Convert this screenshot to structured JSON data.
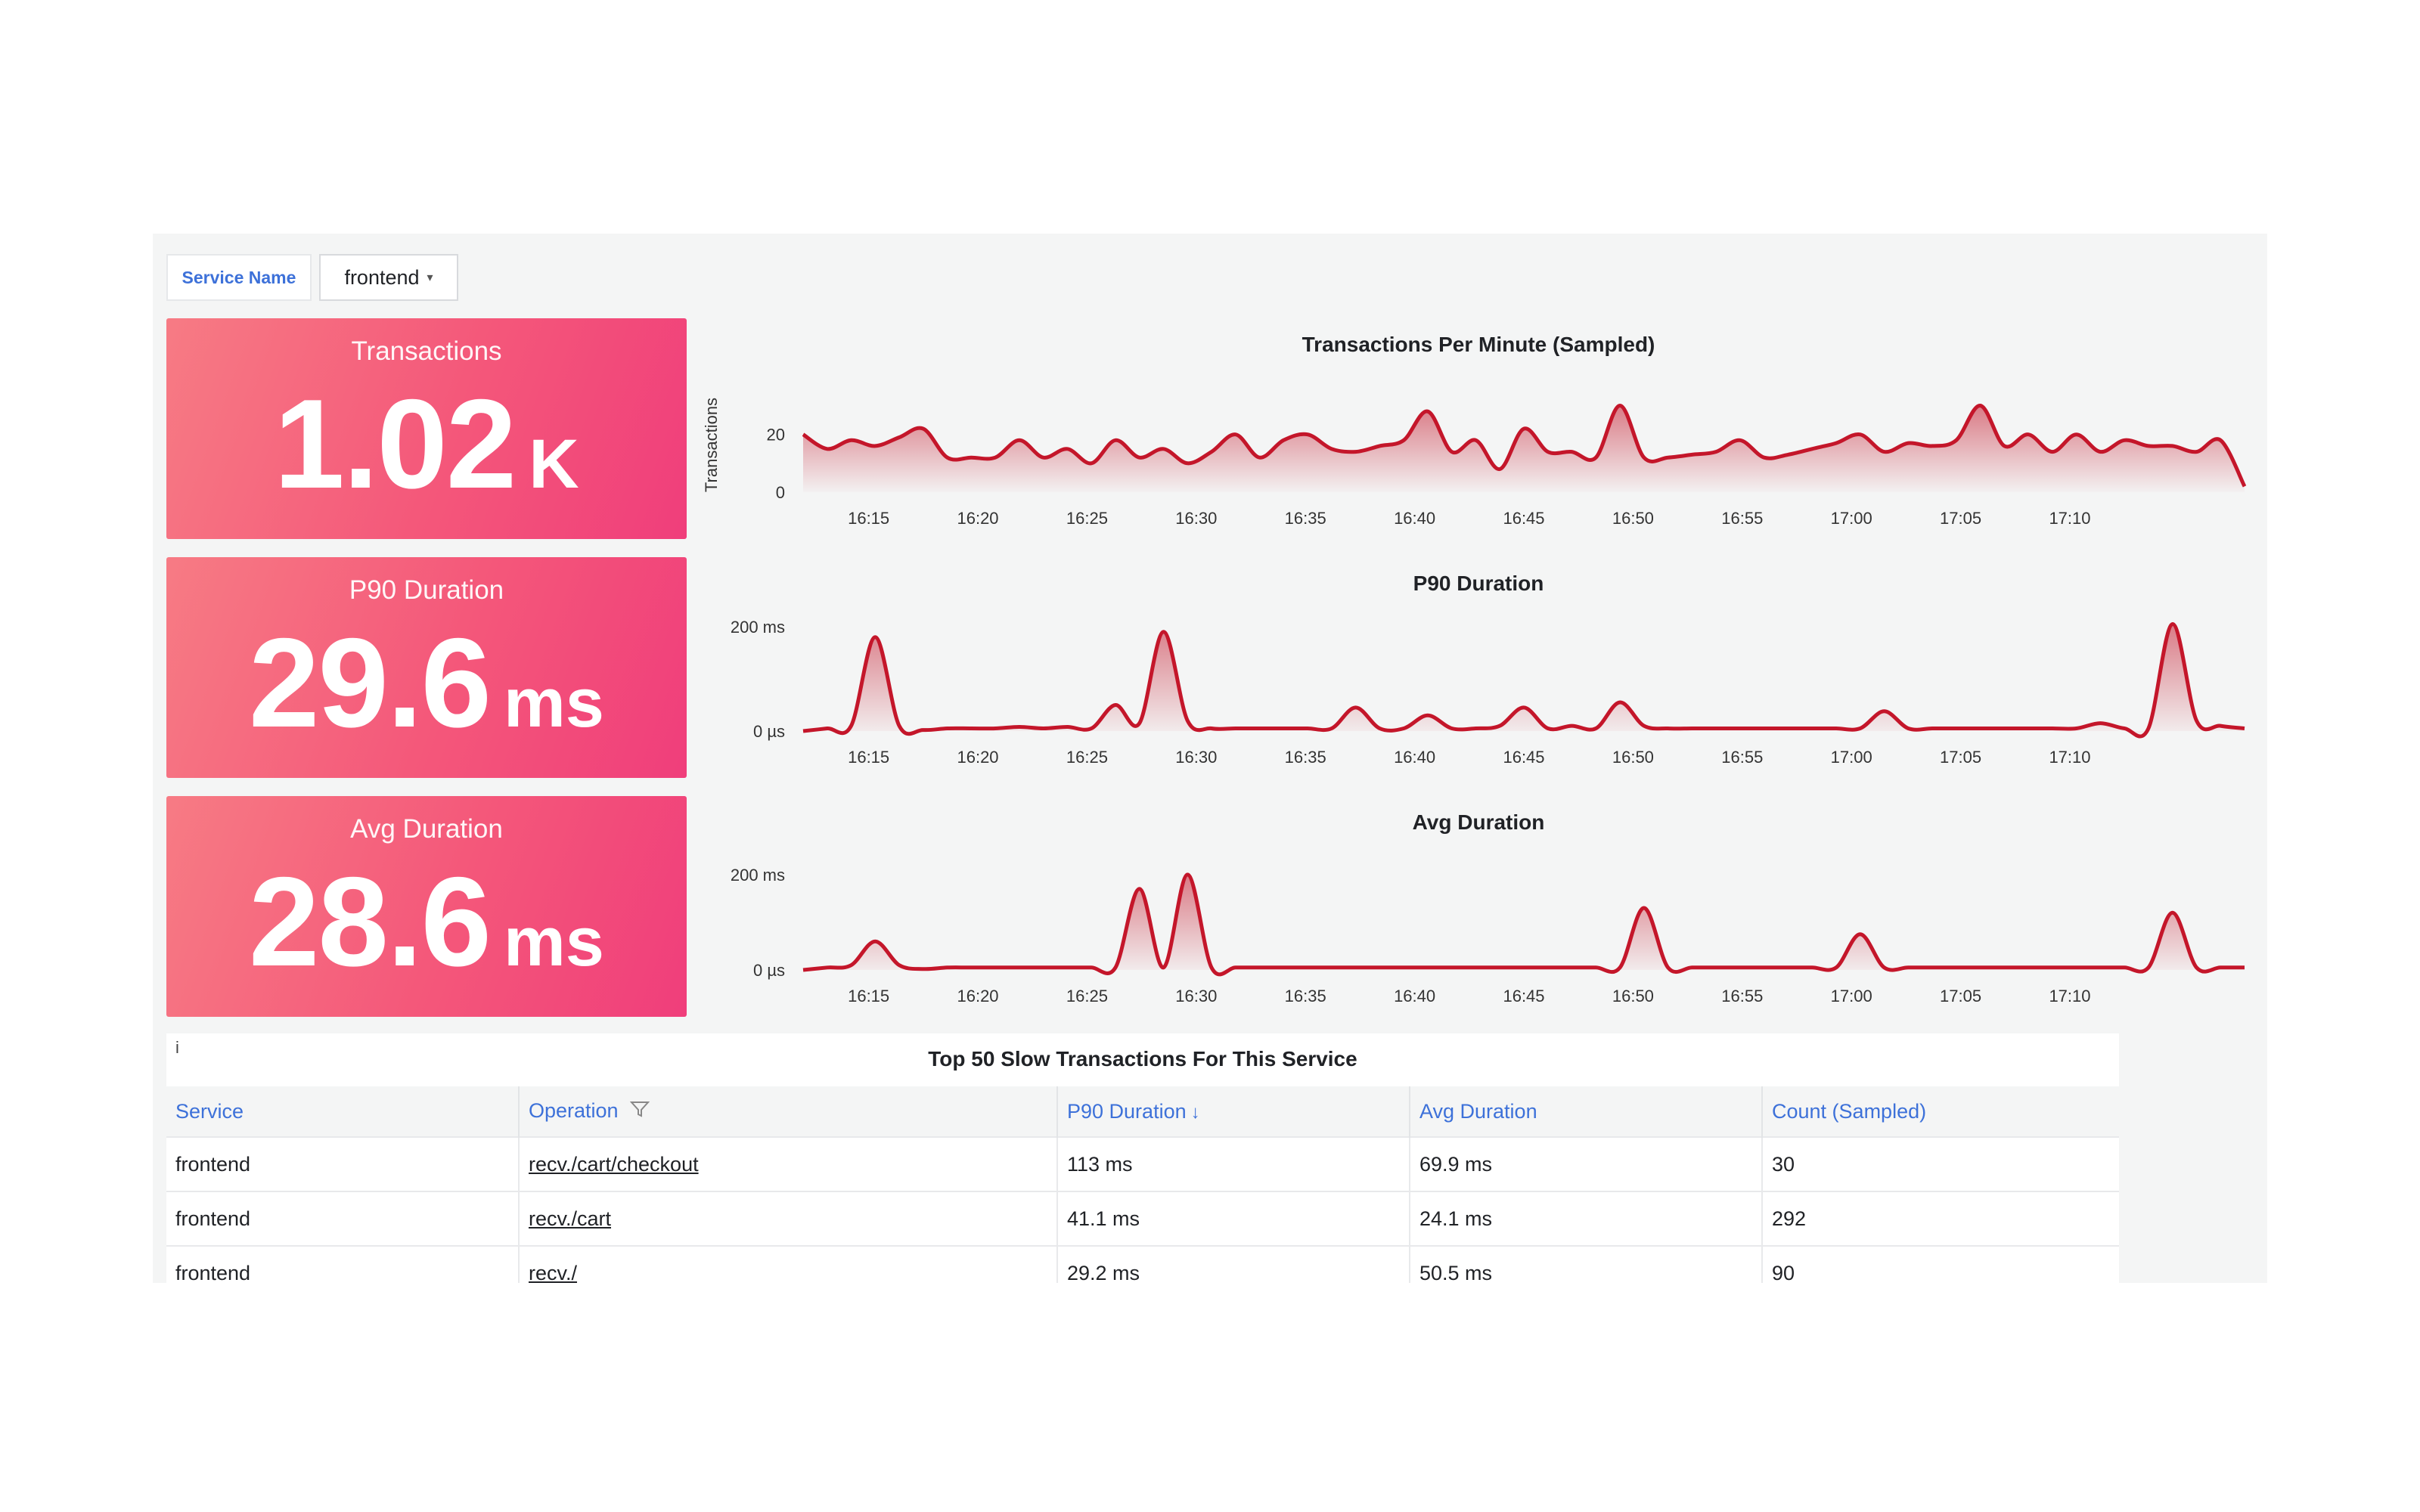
{
  "variable": {
    "label": "Service Name",
    "value": "frontend"
  },
  "stats": [
    {
      "title": "Transactions",
      "value": "1.02",
      "unit": "K"
    },
    {
      "title": "P90 Duration",
      "value": "29.6",
      "unit": "ms"
    },
    {
      "title": "Avg Duration",
      "value": "28.6",
      "unit": "ms"
    }
  ],
  "colors": {
    "accent": "#c4162a",
    "stat_bg": "#f4577a",
    "header_link": "#3d71d9"
  },
  "chart_data": [
    {
      "type": "area",
      "title": "Transactions Per Minute (Sampled)",
      "ylabel": "Transactions",
      "yticks": [
        "20",
        "0"
      ],
      "ylim": [
        0,
        38
      ],
      "x_ticks": [
        "16:15",
        "16:20",
        "16:25",
        "16:30",
        "16:35",
        "16:40",
        "16:45",
        "16:50",
        "16:55",
        "17:00",
        "17:05",
        "17:10"
      ],
      "x_range": [
        16.2,
        17.3
      ],
      "series": [
        {
          "values": [
            20,
            15,
            18,
            16,
            19,
            22,
            12,
            12,
            12,
            18,
            12,
            15,
            10,
            18,
            12,
            15,
            10,
            14,
            20,
            12,
            18,
            20,
            15,
            14,
            16,
            18,
            28,
            14,
            18,
            8,
            22,
            14,
            14,
            12,
            30,
            12,
            12,
            13,
            14,
            18,
            12,
            13,
            15,
            17,
            20,
            14,
            17,
            16,
            18,
            30,
            16,
            20,
            14,
            20,
            14,
            18,
            16,
            16,
            14,
            18,
            2
          ]
        }
      ]
    },
    {
      "type": "area",
      "title": "P90 Duration",
      "yticks": [
        "200 ms",
        "0 µs"
      ],
      "ylim": [
        0,
        210
      ],
      "x_ticks": [
        "16:15",
        "16:20",
        "16:25",
        "16:30",
        "16:35",
        "16:40",
        "16:45",
        "16:50",
        "16:55",
        "17:00",
        "17:05",
        "17:10"
      ],
      "x_range": [
        16.2,
        17.3
      ],
      "series": [
        {
          "values": [
            0,
            5,
            10,
            180,
            10,
            2,
            5,
            5,
            5,
            8,
            5,
            8,
            5,
            50,
            15,
            190,
            20,
            5,
            5,
            5,
            5,
            5,
            5,
            45,
            5,
            5,
            30,
            5,
            5,
            10,
            45,
            5,
            10,
            5,
            55,
            10,
            5,
            5,
            5,
            5,
            5,
            5,
            5,
            5,
            5,
            38,
            5,
            5,
            5,
            5,
            5,
            5,
            5,
            5,
            15,
            5,
            5,
            205,
            20,
            10,
            5
          ]
        }
      ]
    },
    {
      "type": "area",
      "title": "Avg Duration",
      "yticks": [
        "200 ms",
        "0 µs"
      ],
      "ylim": [
        0,
        230
      ],
      "x_ticks": [
        "16:15",
        "16:20",
        "16:25",
        "16:30",
        "16:35",
        "16:40",
        "16:45",
        "16:50",
        "16:55",
        "17:00",
        "17:05",
        "17:10"
      ],
      "x_range": [
        16.2,
        17.3
      ],
      "series": [
        {
          "values": [
            0,
            5,
            10,
            60,
            10,
            2,
            5,
            5,
            5,
            5,
            5,
            5,
            5,
            5,
            170,
            5,
            200,
            5,
            5,
            5,
            5,
            5,
            5,
            5,
            5,
            5,
            5,
            5,
            5,
            5,
            5,
            5,
            5,
            5,
            5,
            130,
            5,
            5,
            5,
            5,
            5,
            5,
            5,
            5,
            75,
            5,
            5,
            5,
            5,
            5,
            5,
            5,
            5,
            5,
            5,
            5,
            5,
            120,
            5,
            5,
            5
          ]
        }
      ]
    }
  ],
  "table": {
    "info_icon": "info-icon",
    "title": "Top 50 Slow Transactions For This Service",
    "columns": [
      "Service",
      "Operation",
      "P90 Duration",
      "Avg Duration",
      "Count (Sampled)"
    ],
    "sort_indicator": "↓",
    "rows": [
      [
        "frontend",
        "recv./cart/checkout",
        "113 ms",
        "69.9 ms",
        "30"
      ],
      [
        "frontend",
        "recv./cart",
        "41.1 ms",
        "24.1 ms",
        "292"
      ],
      [
        "frontend",
        "recv./",
        "29.2 ms",
        "50.5 ms",
        "90"
      ]
    ]
  }
}
